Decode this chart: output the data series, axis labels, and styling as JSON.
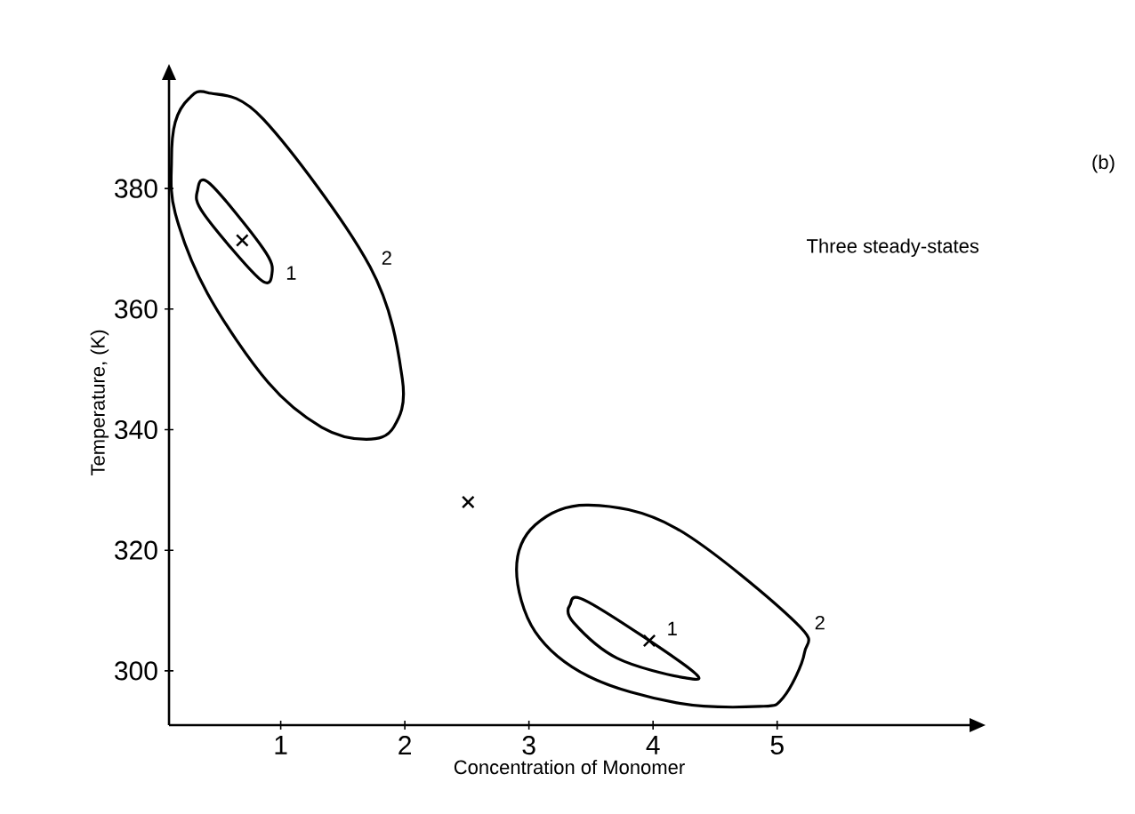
{
  "chart_data": {
    "type": "scatter",
    "xlabel": "Concentration of Monomer",
    "ylabel": "Temperature, (K)",
    "xlim": [
      0.1,
      6.55
    ],
    "ylim": [
      291,
      398
    ],
    "xticks": [
      1,
      2,
      3,
      4,
      5
    ],
    "yticks": [
      300,
      320,
      340,
      360,
      380
    ],
    "marker": "cross",
    "series": [
      {
        "color": "#000000",
        "x": [
          0.69,
          3.97,
          2.51
        ],
        "values": [
          371.4,
          305,
          328
        ]
      }
    ],
    "annotations": [
      "1",
      "2",
      "1",
      "2",
      "(b)",
      "Three steady-states"
    ]
  }
}
